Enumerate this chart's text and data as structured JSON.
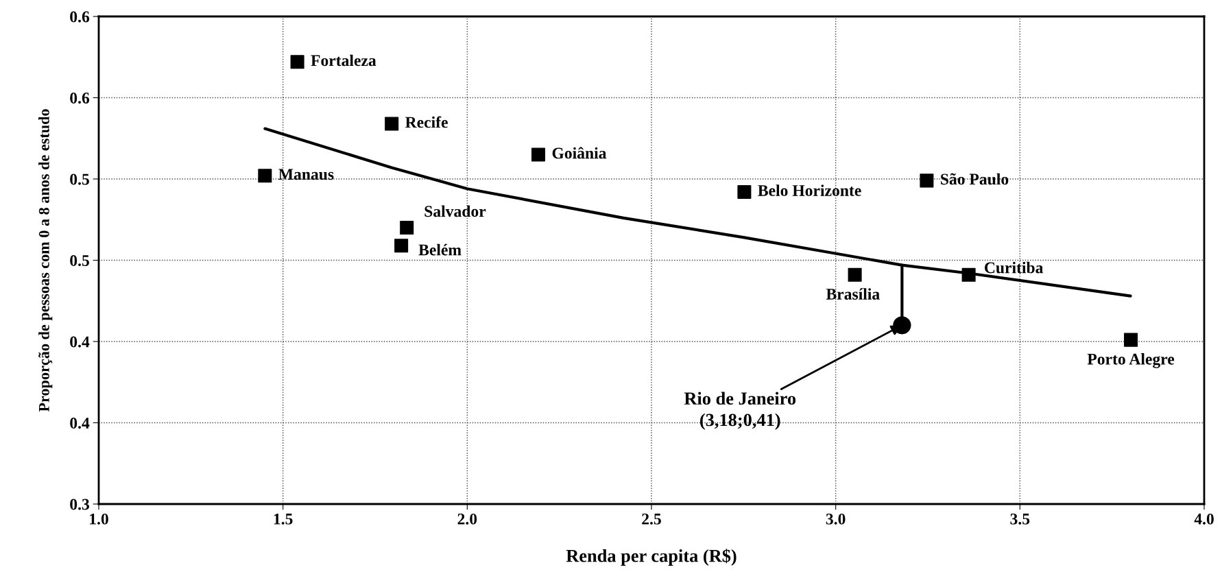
{
  "chart_data": {
    "type": "scatter",
    "xlabel": "Renda per capita (R$)",
    "ylabel": "Proporção de pessoas com 0 a 8 anos de estudo",
    "xlim": [
      1.0,
      4.0
    ],
    "xticks": [
      {
        "value": 1,
        "label": "1.0"
      },
      1.5,
      {
        "value": 2,
        "label": "2.0"
      },
      2.5,
      {
        "value": 3,
        "label": "3.0"
      },
      3.5,
      {
        "value": 4,
        "label": "4.0"
      }
    ],
    "ylim": [
      0.3,
      0.6
    ],
    "yticks": [
      {
        "value": 0.3,
        "label": "0.3"
      },
      {
        "value": 0.35,
        "label": "0.4"
      },
      {
        "value": 0.4,
        "label": "0.4"
      },
      {
        "value": 0.45,
        "label": "0.5"
      },
      {
        "value": 0.5,
        "label": "0.5"
      },
      {
        "value": 0.55,
        "label": "0.6"
      },
      {
        "value": 0.6,
        "label": "0.6"
      }
    ],
    "grid": true,
    "series": [
      {
        "marker": "square",
        "color": "#000000",
        "x": [
          1.539,
          1.795,
          2.193,
          1.451,
          2.752,
          3.247,
          1.836,
          1.821,
          3.052,
          3.361,
          3.801
        ],
        "values": [
          0.572,
          0.534,
          0.515,
          0.502,
          0.492,
          0.499,
          0.47,
          0.459,
          0.441,
          0.441,
          0.401
        ]
      },
      {
        "marker": "circle",
        "color": "#000000",
        "x": [
          3.18
        ],
        "values": [
          0.41
        ]
      },
      {
        "type": "line",
        "marker": "none",
        "color": "#000000",
        "x": [
          1.451,
          1.795,
          2.0,
          2.424,
          2.752,
          3.18,
          3.361,
          3.8
        ],
        "values": [
          0.531,
          0.507,
          0.494,
          0.476,
          0.464,
          0.447,
          0.442,
          0.428
        ]
      },
      {
        "type": "line",
        "marker": "none",
        "color": "#000000",
        "x": [
          3.18,
          3.18
        ],
        "values": [
          0.41,
          0.447
        ]
      }
    ],
    "annotations": [
      {
        "text": "Fortaleza",
        "x": 1.539,
        "y": 0.572
      },
      {
        "text": "Recife",
        "x": 1.795,
        "y": 0.534
      },
      {
        "text": "Goiânia",
        "x": 2.193,
        "y": 0.515
      },
      {
        "text": "Manaus",
        "x": 1.451,
        "y": 0.502
      },
      {
        "text": "Belo Horizonte",
        "x": 2.752,
        "y": 0.492
      },
      {
        "text": "São Paulo",
        "x": 3.247,
        "y": 0.499
      },
      {
        "text": "Salvador",
        "x": 1.836,
        "y": 0.47
      },
      {
        "text": "Belém",
        "x": 1.821,
        "y": 0.459
      },
      {
        "text": "Brasília",
        "x": 3.052,
        "y": 0.441
      },
      {
        "text": "Curitiba",
        "x": 3.361,
        "y": 0.441
      },
      {
        "text": "Porto Alegre",
        "x": 3.801,
        "y": 0.401
      },
      {
        "text": "Rio de Janeiro\n(3,18;0,41)",
        "x": 3.18,
        "y": 0.41
      }
    ]
  }
}
